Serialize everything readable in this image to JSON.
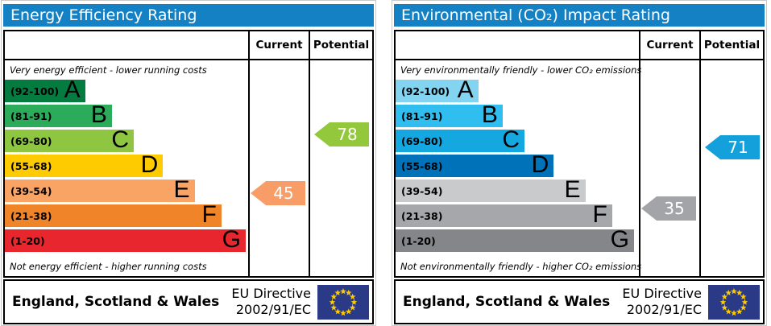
{
  "theme": {
    "header_bg": "#1581c5",
    "header_text": "#ffffff",
    "table_border": "#000000",
    "flag_bg": "#2b3a86",
    "flag_star": "#ffcc00",
    "arrow_text": "#ffffff"
  },
  "panels": [
    {
      "title": "Energy Efficiency Rating",
      "columns": {
        "current": "Current",
        "potential": "Potential"
      },
      "top_caption": "Very energy efficient - lower running costs",
      "bottom_caption": "Not energy efficient - higher running costs",
      "bands": [
        {
          "letter": "A",
          "range": "(92-100)",
          "min": 92,
          "max": 100,
          "color": "#047c40",
          "width_pct": 33
        },
        {
          "letter": "B",
          "range": "(81-91)",
          "min": 81,
          "max": 91,
          "color": "#2cab5b",
          "width_pct": 44
        },
        {
          "letter": "C",
          "range": "(69-80)",
          "min": 69,
          "max": 80,
          "color": "#8ec642",
          "width_pct": 53
        },
        {
          "letter": "D",
          "range": "(55-68)",
          "min": 55,
          "max": 68,
          "color": "#fdcb00",
          "width_pct": 65
        },
        {
          "letter": "E",
          "range": "(39-54)",
          "min": 39,
          "max": 54,
          "color": "#f9a465",
          "width_pct": 78
        },
        {
          "letter": "F",
          "range": "(21-38)",
          "min": 21,
          "max": 38,
          "color": "#ef8428",
          "width_pct": 89
        },
        {
          "letter": "G",
          "range": "(1-20)",
          "min": 1,
          "max": 20,
          "color": "#e8262e",
          "width_pct": 99
        }
      ],
      "current": {
        "value": 45,
        "color": "#f99d68"
      },
      "potential": {
        "value": 78,
        "color": "#93c83d"
      },
      "footer": {
        "region": "England, Scotland & Wales",
        "directive": [
          "EU Directive",
          "2002/91/EC"
        ]
      }
    },
    {
      "title": "Environmental (CO₂) Impact Rating",
      "columns": {
        "current": "Current",
        "potential": "Potential"
      },
      "top_caption": "Very environmentally friendly - lower CO₂ emissions",
      "bottom_caption": "Not environmentally friendly - higher CO₂ emissions",
      "bands": [
        {
          "letter": "A",
          "range": "(92-100)",
          "min": 92,
          "max": 100,
          "color": "#82d4f1",
          "width_pct": 34
        },
        {
          "letter": "B",
          "range": "(81-91)",
          "min": 81,
          "max": 91,
          "color": "#30bdf0",
          "width_pct": 44
        },
        {
          "letter": "C",
          "range": "(69-80)",
          "min": 69,
          "max": 80,
          "color": "#14a7e0",
          "width_pct": 53
        },
        {
          "letter": "D",
          "range": "(55-68)",
          "min": 55,
          "max": 68,
          "color": "#0072ba",
          "width_pct": 65
        },
        {
          "letter": "E",
          "range": "(39-54)",
          "min": 39,
          "max": 54,
          "color": "#c9cacb",
          "width_pct": 78
        },
        {
          "letter": "F",
          "range": "(21-38)",
          "min": 21,
          "max": 38,
          "color": "#a5a7aa",
          "width_pct": 89
        },
        {
          "letter": "G",
          "range": "(1-20)",
          "min": 1,
          "max": 20,
          "color": "#848689",
          "width_pct": 98
        }
      ],
      "current": {
        "value": 35,
        "color": "#a3a4a7"
      },
      "potential": {
        "value": 71,
        "color": "#14a0da"
      },
      "footer": {
        "region": "England, Scotland & Wales",
        "directive": [
          "EU Directive",
          "2002/91/EC"
        ]
      }
    }
  ],
  "chart_data": [
    {
      "type": "bar",
      "title": "Energy Efficiency Rating",
      "categories": [
        "A",
        "B",
        "C",
        "D",
        "E",
        "F",
        "G"
      ],
      "band_ranges": [
        "92-100",
        "81-91",
        "69-80",
        "55-68",
        "39-54",
        "21-38",
        "1-20"
      ],
      "band_colors": [
        "#047c40",
        "#2cab5b",
        "#8ec642",
        "#fdcb00",
        "#f9a465",
        "#ef8428",
        "#e8262e"
      ],
      "bar_width_pct": [
        33,
        44,
        53,
        65,
        78,
        89,
        99
      ],
      "value_range": [
        1,
        100
      ],
      "series": [
        {
          "name": "Current",
          "values": [
            45
          ],
          "band": "E",
          "color": "#f99d68"
        },
        {
          "name": "Potential",
          "values": [
            78
          ],
          "band": "C",
          "color": "#93c83d"
        }
      ],
      "annotation_top": "Very energy efficient - lower running costs",
      "annotation_bottom": "Not energy efficient - higher running costs",
      "footer": "England, Scotland & Wales — EU Directive 2002/91/EC"
    },
    {
      "type": "bar",
      "title": "Environmental (CO₂) Impact Rating",
      "categories": [
        "A",
        "B",
        "C",
        "D",
        "E",
        "F",
        "G"
      ],
      "band_ranges": [
        "92-100",
        "81-91",
        "69-80",
        "55-68",
        "39-54",
        "21-38",
        "1-20"
      ],
      "band_colors": [
        "#82d4f1",
        "#30bdf0",
        "#14a7e0",
        "#0072ba",
        "#c9cacb",
        "#a5a7aa",
        "#848689"
      ],
      "bar_width_pct": [
        34,
        44,
        53,
        65,
        78,
        89,
        98
      ],
      "value_range": [
        1,
        100
      ],
      "series": [
        {
          "name": "Current",
          "values": [
            35
          ],
          "band": "F",
          "color": "#a3a4a7"
        },
        {
          "name": "Potential",
          "values": [
            71
          ],
          "band": "C",
          "color": "#14a0da"
        }
      ],
      "annotation_top": "Very environmentally friendly - lower CO₂ emissions",
      "annotation_bottom": "Not environmentally friendly - higher CO₂ emissions",
      "footer": "England, Scotland & Wales — EU Directive 2002/91/EC"
    }
  ]
}
